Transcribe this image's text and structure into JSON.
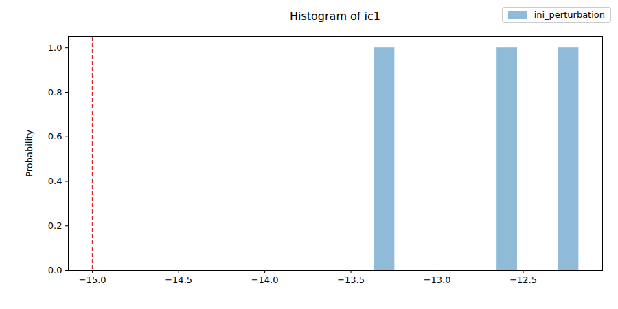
{
  "chart_data": {
    "type": "histogram",
    "title": "Histogram of ic1",
    "ylabel": "Probability",
    "bins": [
      -13.365,
      -13.246,
      -13.128,
      -13.009,
      -12.89,
      -12.772,
      -12.653,
      -12.534,
      -12.416,
      -12.297,
      -12.178
    ],
    "series": [
      {
        "name": "ini_perturbation",
        "color": "#8fbbd9",
        "values": [
          1,
          0,
          0,
          0,
          0,
          0,
          1,
          0,
          0,
          1
        ]
      }
    ],
    "xlim": [
      -15.14,
      -12.04
    ],
    "xticks": [
      {
        "value": -15,
        "label": "−15.0"
      },
      {
        "value": -14.5,
        "label": "−14.5"
      },
      {
        "value": -14,
        "label": "−14.0"
      },
      {
        "value": -13.5,
        "label": "−13.5"
      },
      {
        "value": -13,
        "label": "−13.0"
      },
      {
        "value": -12.5,
        "label": "−12.5"
      }
    ],
    "ylim": [
      0,
      1.05
    ],
    "yticks": [
      {
        "value": 0,
        "label": "0.0"
      },
      {
        "value": 0.2,
        "label": "0.2"
      },
      {
        "value": 0.4,
        "label": "0.4"
      },
      {
        "value": 0.6,
        "label": "0.6"
      },
      {
        "value": 0.8,
        "label": "0.8"
      },
      {
        "value": 1,
        "label": "1.0"
      }
    ],
    "legend": "upper right",
    "reference_line": {
      "x": -15,
      "color": "#d62728",
      "line_style": "dashed"
    }
  }
}
